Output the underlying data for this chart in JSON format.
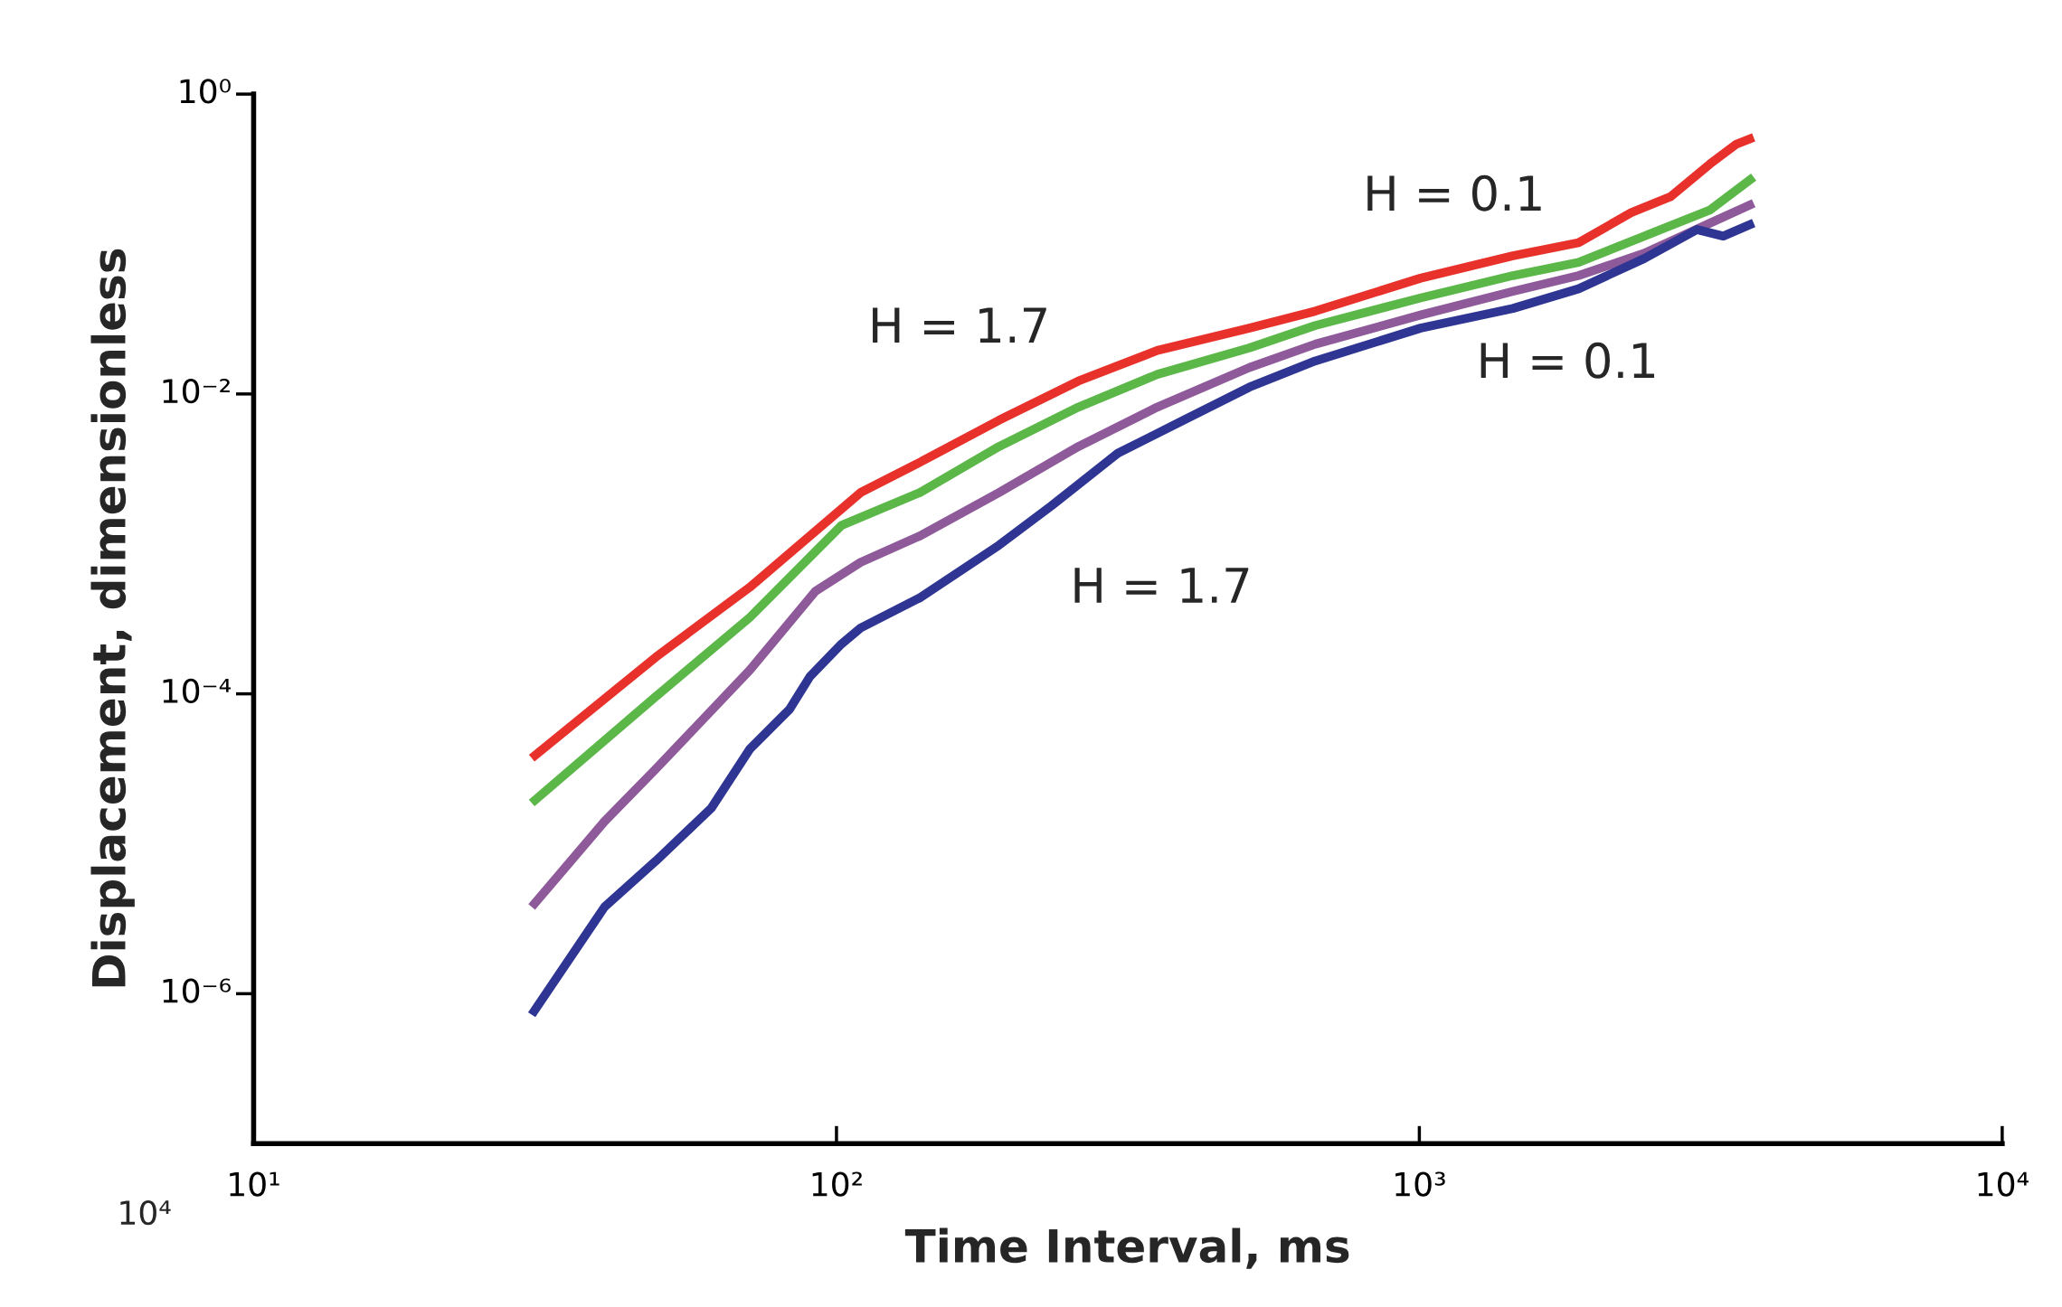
{
  "chart_data": {
    "type": "line",
    "xlabel": "Time Interval, ms",
    "ylabel": "Displacement, dimensionless",
    "log": "xy",
    "grid": false,
    "legend": false,
    "xlim": [
      10,
      10000
    ],
    "ylim": [
      1e-07,
      1
    ],
    "xticks": [
      {
        "value": 10,
        "label": "10¹"
      },
      {
        "value": 100,
        "label": "10²"
      },
      {
        "value": 1000,
        "label": "10³"
      },
      {
        "value": 10000,
        "label": "10⁴"
      }
    ],
    "yticks": [
      {
        "value": 1e-06,
        "label": "10⁻⁶"
      },
      {
        "value": 0.0001,
        "label": "10⁻⁴"
      },
      {
        "value": 0.01,
        "label": "10⁻²"
      },
      {
        "value": 1,
        "label": "10⁰"
      }
    ],
    "series": [
      {
        "color": "#e8312a",
        "x": [
          30,
          49,
          71,
          90,
          110,
          139,
          190,
          260,
          355,
          511,
          663,
          1005,
          1447,
          1876,
          2309,
          2699,
          3155,
          3500,
          3746
        ],
        "values": [
          3.72e-05,
          0.000176,
          0.000514,
          0.00113,
          0.0022,
          0.0035,
          0.00668,
          0.0122,
          0.0195,
          0.0275,
          0.0357,
          0.0592,
          0.0834,
          0.102,
          0.162,
          0.207,
          0.343,
          0.464,
          0.514
        ]
      },
      {
        "color": "#5bb848",
        "x": [
          30,
          49,
          71,
          102,
          139,
          190,
          260,
          355,
          511,
          663,
          1005,
          1447,
          1876,
          2432,
          3155,
          3746
        ],
        "values": [
          1.87e-05,
          9.6e-05,
          0.000323,
          0.00133,
          0.0022,
          0.00446,
          0.00817,
          0.0135,
          0.0203,
          0.0286,
          0.0437,
          0.0616,
          0.0754,
          0.113,
          0.169,
          0.28
        ]
      },
      {
        "color": "#8e5a9a",
        "x": [
          30,
          40,
          49,
          71,
          92,
          110,
          139,
          190,
          260,
          355,
          511,
          663,
          1005,
          1447,
          1876,
          2432,
          3155,
          3746
        ],
        "values": [
          3.79e-06,
          1.41e-05,
          3.16e-05,
          0.000144,
          0.000483,
          0.000754,
          0.00113,
          0.0022,
          0.00446,
          0.00817,
          0.015,
          0.0215,
          0.0336,
          0.0483,
          0.0616,
          0.0868,
          0.138,
          0.187
        ]
      },
      {
        "color": "#2e3592",
        "x": [
          30,
          40,
          49,
          61,
          71,
          83,
          90,
          102,
          110,
          139,
          190,
          234,
          304,
          394,
          511,
          663,
          1005,
          1447,
          1876,
          2432,
          2994,
          3322,
          3746
        ],
        "values": [
          7.24e-07,
          3.79e-06,
          7.69e-06,
          1.73e-05,
          4.28e-05,
          7.85e-05,
          0.00013,
          0.000215,
          0.000275,
          0.000437,
          0.00098,
          0.0018,
          0.00403,
          0.00668,
          0.0111,
          0.0166,
          0.0275,
          0.0372,
          0.0503,
          0.0801,
          0.125,
          0.113,
          0.138
        ]
      }
    ],
    "annotations": [
      "H = 0.1",
      "H = 1.7",
      "H = 0.1",
      "H = 1.7",
      "10⁴"
    ]
  }
}
